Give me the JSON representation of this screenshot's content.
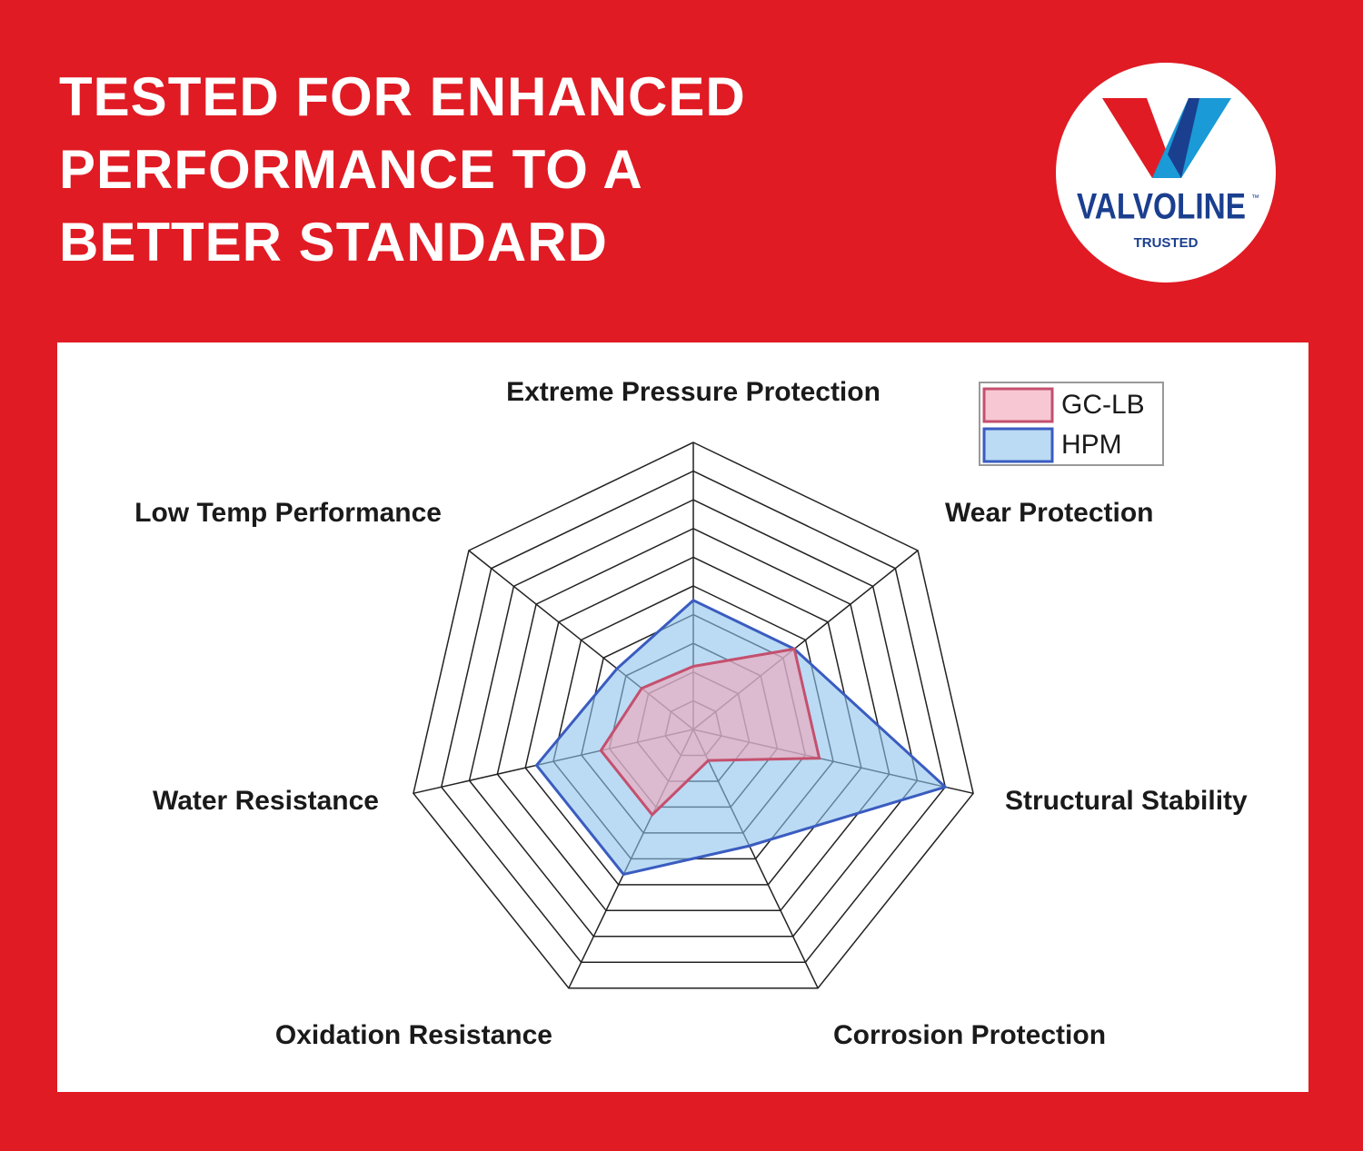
{
  "header": {
    "title": [
      "TESTED FOR ENHANCED",
      "PERFORMANCE TO A",
      "BETTER STANDARD"
    ]
  },
  "logo": {
    "brand": "VALVOLINE",
    "mark": "™",
    "tagline": "TRUSTED"
  },
  "chart_data": {
    "type": "radar",
    "categories": [
      "Extreme Pressure Protection",
      "Wear Protection",
      "Structural Stability",
      "Corrosion Protection",
      "Oxidation Resistance",
      "Water Resistance",
      "Low Temp Performance"
    ],
    "rlim": [
      0,
      10
    ],
    "rticks": [
      1,
      2,
      3,
      4,
      5,
      6,
      7,
      8,
      9,
      10
    ],
    "grid": true,
    "series": [
      {
        "name": "GC-LB",
        "color": "#c4506e",
        "fill": "#f2a3b6",
        "values": [
          2.2,
          4.5,
          4.5,
          1.2,
          3.3,
          3.3,
          2.3
        ]
      },
      {
        "name": "HPM",
        "color": "#3a5cc0",
        "fill": "#8ec3ec",
        "values": [
          4.5,
          4.5,
          9.0,
          4.5,
          5.6,
          5.6,
          3.4
        ]
      }
    ]
  }
}
